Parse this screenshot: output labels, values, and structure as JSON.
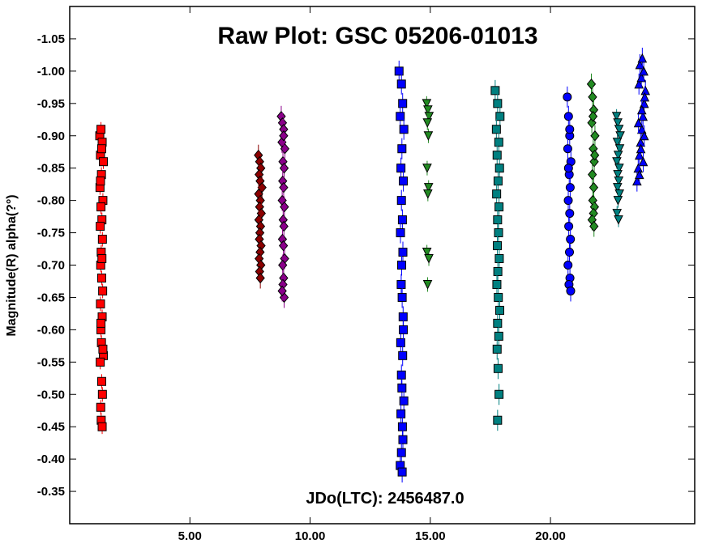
{
  "chart_data": {
    "type": "scatter",
    "title": "Raw Plot: GSC 05206-01013",
    "xlabel": "",
    "ylabel": "Magnitude(R) alpha(?°)",
    "annotation": "JDo(LTC): 2456487.0",
    "xlim": [
      0,
      26
    ],
    "ylim": [
      -0.3,
      -1.1
    ],
    "y_inverted": true,
    "grid": false,
    "legend": "none",
    "x_ticks": [
      5,
      10,
      15,
      20
    ],
    "x_tick_labels": [
      "5.00",
      "10.00",
      "15.00",
      "20.00"
    ],
    "y_ticks": [
      -0.35,
      -0.4,
      -0.45,
      -0.5,
      -0.55,
      -0.6,
      -0.65,
      -0.7,
      -0.75,
      -0.8,
      -0.85,
      -0.9,
      -0.95,
      -1.0,
      -1.05
    ],
    "y_tick_labels": [
      "-0.35",
      "-0.40",
      "-0.45",
      "-0.50",
      "-0.55",
      "-0.60",
      "-0.65",
      "-0.70",
      "-0.75",
      "-0.80",
      "-0.85",
      "-0.90",
      "-0.95",
      "-1.00",
      "-1.05"
    ],
    "series": [
      {
        "color": "#ff0000",
        "marker": "square",
        "error": 0.005,
        "x": [
          1.25,
          1.3,
          1.35,
          1.28,
          1.4,
          1.32,
          1.26,
          1.38,
          1.3,
          1.34,
          1.27,
          1.36,
          1.31,
          1.29,
          1.33,
          1.37,
          1.28,
          1.35,
          1.3,
          1.32,
          1.4,
          1.27,
          1.33,
          1.36,
          1.29,
          1.31,
          1.35,
          1.38,
          1.3,
          1.34,
          1.28,
          1.33
        ],
        "y": [
          -0.9,
          -0.91,
          -0.89,
          -0.87,
          -0.86,
          -0.84,
          -0.82,
          -0.8,
          -0.79,
          -0.77,
          -0.76,
          -0.74,
          -0.72,
          -0.7,
          -0.68,
          -0.66,
          -0.64,
          -0.62,
          -0.6,
          -0.58,
          -0.56,
          -0.55,
          -0.52,
          -0.5,
          -0.48,
          -0.46,
          -0.45,
          -0.57,
          -0.61,
          -0.71,
          -0.83,
          -0.88
        ]
      },
      {
        "color": "#8b0000",
        "marker": "diamond",
        "error": 0.01,
        "x": [
          7.85,
          7.9,
          7.95,
          7.88,
          7.92,
          8.0,
          7.86,
          7.93,
          7.9,
          7.97,
          7.87,
          7.94,
          7.91,
          7.89,
          7.96,
          7.92,
          7.88,
          7.95,
          7.9,
          7.93
        ],
        "y": [
          -0.87,
          -0.86,
          -0.85,
          -0.84,
          -0.83,
          -0.82,
          -0.81,
          -0.8,
          -0.79,
          -0.78,
          -0.77,
          -0.76,
          -0.75,
          -0.74,
          -0.73,
          -0.72,
          -0.71,
          -0.7,
          -0.69,
          -0.68
        ]
      },
      {
        "color": "#8b008b",
        "marker": "diamond",
        "error": 0.01,
        "x": [
          8.8,
          8.85,
          8.9,
          8.83,
          8.95,
          8.87,
          8.92,
          8.86,
          8.9,
          8.84,
          8.93,
          8.88,
          8.91,
          8.85,
          8.89,
          8.94,
          8.86,
          8.9,
          8.87,
          8.92,
          8.84,
          8.9
        ],
        "y": [
          -0.93,
          -0.92,
          -0.91,
          -0.89,
          -0.88,
          -0.86,
          -0.85,
          -0.83,
          -0.82,
          -0.8,
          -0.79,
          -0.77,
          -0.76,
          -0.74,
          -0.73,
          -0.71,
          -0.7,
          -0.68,
          -0.67,
          -0.65,
          -0.66,
          -0.9
        ]
      },
      {
        "color": "#0000ff",
        "marker": "square",
        "error": 0.01,
        "x": [
          13.7,
          13.8,
          13.85,
          13.75,
          13.9,
          13.82,
          13.78,
          13.88,
          13.8,
          13.84,
          13.76,
          13.86,
          13.81,
          13.79,
          13.83,
          13.87,
          13.77,
          13.85,
          13.8,
          13.82,
          13.9,
          13.78,
          13.84,
          13.86,
          13.8,
          13.75,
          13.83,
          13.88
        ],
        "y": [
          -1.0,
          -0.98,
          -0.95,
          -0.93,
          -0.91,
          -0.88,
          -0.85,
          -0.83,
          -0.8,
          -0.77,
          -0.75,
          -0.72,
          -0.7,
          -0.67,
          -0.65,
          -0.62,
          -0.58,
          -0.56,
          -0.53,
          -0.51,
          -0.49,
          -0.47,
          -0.45,
          -0.43,
          -0.41,
          -0.39,
          -0.38,
          -0.6
        ]
      },
      {
        "color": "#228b22",
        "marker": "triangle-down",
        "error": 0.005,
        "x": [
          14.85,
          14.9,
          14.95,
          14.88,
          14.92,
          14.87,
          14.93,
          14.9,
          14.86,
          14.94,
          14.89
        ],
        "y": [
          -0.95,
          -0.94,
          -0.93,
          -0.92,
          -0.9,
          -0.85,
          -0.82,
          -0.81,
          -0.72,
          -0.71,
          -0.67
        ]
      },
      {
        "color": "#008080",
        "marker": "square",
        "error": 0.01,
        "x": [
          17.7,
          17.8,
          17.9,
          17.75,
          17.85,
          17.78,
          17.88,
          17.82,
          17.76,
          17.86,
          17.8,
          17.84,
          17.79,
          17.87,
          17.81,
          17.77,
          17.83,
          17.89,
          17.8,
          17.85,
          17.78,
          17.82,
          17.86,
          17.8
        ],
        "y": [
          -0.97,
          -0.95,
          -0.93,
          -0.91,
          -0.89,
          -0.87,
          -0.85,
          -0.83,
          -0.81,
          -0.79,
          -0.77,
          -0.75,
          -0.73,
          -0.71,
          -0.69,
          -0.67,
          -0.65,
          -0.63,
          -0.61,
          -0.59,
          -0.57,
          -0.54,
          -0.5,
          -0.46
        ]
      },
      {
        "color": "#0000ff",
        "marker": "circle",
        "error": 0.01,
        "x": [
          20.7,
          20.75,
          20.8,
          20.72,
          20.85,
          20.78,
          20.82,
          20.74,
          20.8,
          20.76,
          20.83,
          20.79,
          20.73,
          20.81,
          20.77,
          20.84,
          20.75,
          20.8
        ],
        "y": [
          -0.96,
          -0.93,
          -0.9,
          -0.88,
          -0.86,
          -0.84,
          -0.82,
          -0.8,
          -0.78,
          -0.76,
          -0.74,
          -0.72,
          -0.7,
          -0.68,
          -0.67,
          -0.66,
          -0.85,
          -0.91
        ]
      },
      {
        "color": "#228b22",
        "marker": "diamond",
        "error": 0.01,
        "x": [
          21.7,
          21.75,
          21.8,
          21.72,
          21.85,
          21.78,
          21.82,
          21.74,
          21.8,
          21.76,
          21.83,
          21.79,
          21.73,
          21.81,
          21.77,
          21.84
        ],
        "y": [
          -0.98,
          -0.96,
          -0.94,
          -0.92,
          -0.9,
          -0.88,
          -0.86,
          -0.84,
          -0.82,
          -0.8,
          -0.79,
          -0.78,
          -0.77,
          -0.76,
          -0.93,
          -0.87
        ]
      },
      {
        "color": "#008080",
        "marker": "triangle-down",
        "error": 0.005,
        "x": [
          22.75,
          22.8,
          22.85,
          22.9,
          22.78,
          22.88,
          22.82,
          22.76,
          22.86,
          22.8,
          22.84,
          22.79,
          22.87,
          22.81,
          22.77,
          22.83
        ],
        "y": [
          -0.93,
          -0.92,
          -0.91,
          -0.9,
          -0.89,
          -0.88,
          -0.87,
          -0.86,
          -0.85,
          -0.84,
          -0.83,
          -0.82,
          -0.81,
          -0.8,
          -0.78,
          -0.77
        ]
      },
      {
        "color": "#0000ff",
        "marker": "triangle-up",
        "error": 0.01,
        "x": [
          23.6,
          23.65,
          23.7,
          23.75,
          23.8,
          23.85,
          23.9,
          23.95,
          23.68,
          23.78,
          23.88,
          23.72,
          23.82,
          23.92,
          23.66,
          23.76,
          23.86,
          23.7,
          23.8,
          23.9
        ],
        "y": [
          -0.83,
          -0.85,
          -0.87,
          -0.89,
          -0.91,
          -0.93,
          -0.95,
          -0.97,
          -0.98,
          -0.99,
          -1.0,
          -1.01,
          -1.02,
          -0.96,
          -0.92,
          -0.88,
          -0.86,
          -0.84,
          -0.94,
          -0.9
        ]
      }
    ]
  }
}
